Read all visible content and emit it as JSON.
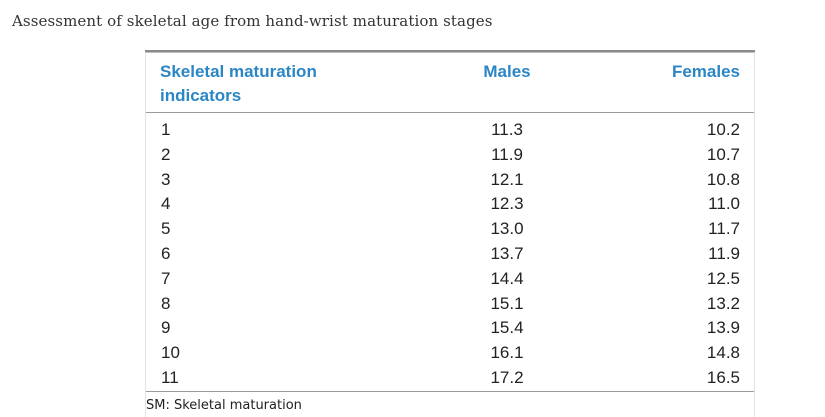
{
  "caption": "Assessment of skeletal age from hand-wrist maturation stages",
  "table": {
    "headers": {
      "indicators": "Skeletal maturation indicators",
      "males": "Males",
      "females": "Females"
    },
    "rows": [
      {
        "indicator": "1",
        "males": "11.3",
        "females": "10.2"
      },
      {
        "indicator": "2",
        "males": "11.9",
        "females": "10.7"
      },
      {
        "indicator": "3",
        "males": "12.1",
        "females": "10.8"
      },
      {
        "indicator": "4",
        "males": "12.3",
        "females": "11.0"
      },
      {
        "indicator": "5",
        "males": "13.0",
        "females": "11.7"
      },
      {
        "indicator": "6",
        "males": "13.7",
        "females": "11.9"
      },
      {
        "indicator": "7",
        "males": "14.4",
        "females": "12.5"
      },
      {
        "indicator": "8",
        "males": "15.1",
        "females": "13.2"
      },
      {
        "indicator": "9",
        "males": "15.4",
        "females": "13.9"
      },
      {
        "indicator": "10",
        "males": "16.1",
        "females": "14.8"
      },
      {
        "indicator": "11",
        "males": "17.2",
        "females": "16.5"
      }
    ],
    "footnote": "SM: Skeletal maturation"
  },
  "colors": {
    "header_text": "#2b86c5",
    "body_text": "#222222",
    "caption_text": "#333333"
  }
}
